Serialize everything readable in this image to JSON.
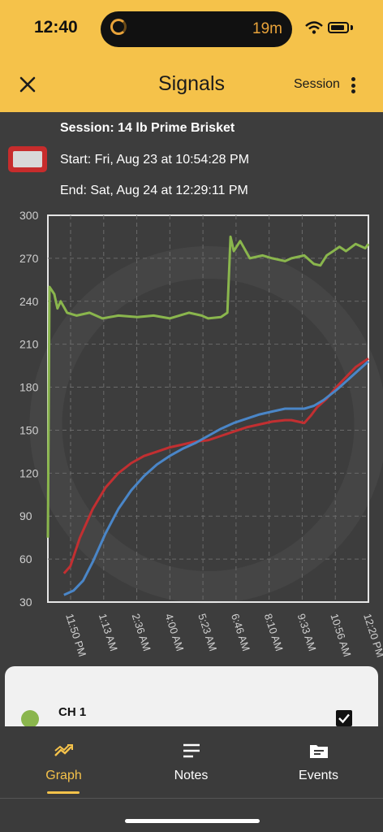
{
  "status": {
    "time": "12:40",
    "timer": "19m"
  },
  "header": {
    "title": "Signals",
    "session_label": "Session"
  },
  "session": {
    "name": "Session: 14 lb Prime Brisket",
    "start": "Start: Fri, Aug 23  at 10:54:28 PM",
    "end": "End: Sat, Aug 24  at 12:29:11 PM"
  },
  "chart_data": {
    "type": "line",
    "x_labels": [
      "11:50 PM",
      "1:13 AM",
      "2:36 AM",
      "4:00 AM",
      "5:23 AM",
      "6:46 AM",
      "8:10 AM",
      "9:33 AM",
      "10:56 AM",
      "12:20 PM"
    ],
    "ylim": [
      30,
      300
    ],
    "y_ticks": [
      300,
      270,
      240,
      210,
      180,
      150,
      120,
      90,
      60,
      30
    ],
    "grid": true,
    "colors": {
      "green": "#8ab64d",
      "red": "#c22f31",
      "blue": "#4a86c8"
    },
    "series": [
      {
        "color": "green",
        "points": [
          [
            0,
            75
          ],
          [
            0.5,
            250
          ],
          [
            2,
            245
          ],
          [
            3,
            235
          ],
          [
            4,
            240
          ],
          [
            6,
            232
          ],
          [
            9,
            230
          ],
          [
            13,
            232
          ],
          [
            17,
            228
          ],
          [
            22,
            230
          ],
          [
            28,
            229
          ],
          [
            33,
            230
          ],
          [
            38,
            228
          ],
          [
            44,
            232
          ],
          [
            48,
            230
          ],
          [
            50,
            228
          ],
          [
            54,
            229
          ],
          [
            56,
            232
          ],
          [
            57,
            285
          ],
          [
            58,
            275
          ],
          [
            60,
            282
          ],
          [
            63,
            270
          ],
          [
            67,
            272
          ],
          [
            70,
            270
          ],
          [
            74,
            268
          ],
          [
            76,
            270
          ],
          [
            80,
            272
          ],
          [
            83,
            266
          ],
          [
            85,
            265
          ],
          [
            87,
            272
          ],
          [
            89,
            275
          ],
          [
            91,
            278
          ],
          [
            93,
            275
          ],
          [
            96,
            280
          ],
          [
            99,
            277
          ],
          [
            100,
            280
          ]
        ]
      },
      {
        "color": "red",
        "points": [
          [
            5,
            50
          ],
          [
            7,
            55
          ],
          [
            10,
            75
          ],
          [
            14,
            95
          ],
          [
            18,
            110
          ],
          [
            22,
            120
          ],
          [
            26,
            127
          ],
          [
            30,
            132
          ],
          [
            34,
            135
          ],
          [
            38,
            138
          ],
          [
            42,
            140
          ],
          [
            46,
            142
          ],
          [
            50,
            143
          ],
          [
            54,
            146
          ],
          [
            58,
            149
          ],
          [
            62,
            152
          ],
          [
            66,
            154
          ],
          [
            70,
            156
          ],
          [
            74,
            157
          ],
          [
            76,
            157
          ],
          [
            78,
            156
          ],
          [
            80,
            155
          ],
          [
            82,
            160
          ],
          [
            84,
            166
          ],
          [
            87,
            172
          ],
          [
            90,
            180
          ],
          [
            93,
            187
          ],
          [
            96,
            194
          ],
          [
            100,
            200
          ]
        ]
      },
      {
        "color": "blue",
        "points": [
          [
            5,
            35
          ],
          [
            8,
            38
          ],
          [
            11,
            45
          ],
          [
            14,
            58
          ],
          [
            18,
            78
          ],
          [
            22,
            95
          ],
          [
            26,
            108
          ],
          [
            30,
            118
          ],
          [
            34,
            126
          ],
          [
            38,
            132
          ],
          [
            42,
            137
          ],
          [
            46,
            141
          ],
          [
            50,
            146
          ],
          [
            54,
            151
          ],
          [
            58,
            155
          ],
          [
            62,
            158
          ],
          [
            66,
            161
          ],
          [
            70,
            163
          ],
          [
            74,
            165
          ],
          [
            77,
            165
          ],
          [
            80,
            165
          ],
          [
            83,
            167
          ],
          [
            86,
            171
          ],
          [
            90,
            178
          ],
          [
            94,
            186
          ],
          [
            97,
            192
          ],
          [
            100,
            198
          ]
        ]
      }
    ]
  },
  "channel": {
    "label": "CH 1",
    "color": "#8ab64d"
  },
  "tabs": [
    {
      "label": "Graph",
      "icon": "graph-icon"
    },
    {
      "label": "Notes",
      "icon": "notes-icon"
    },
    {
      "label": "Events",
      "icon": "events-icon"
    }
  ]
}
